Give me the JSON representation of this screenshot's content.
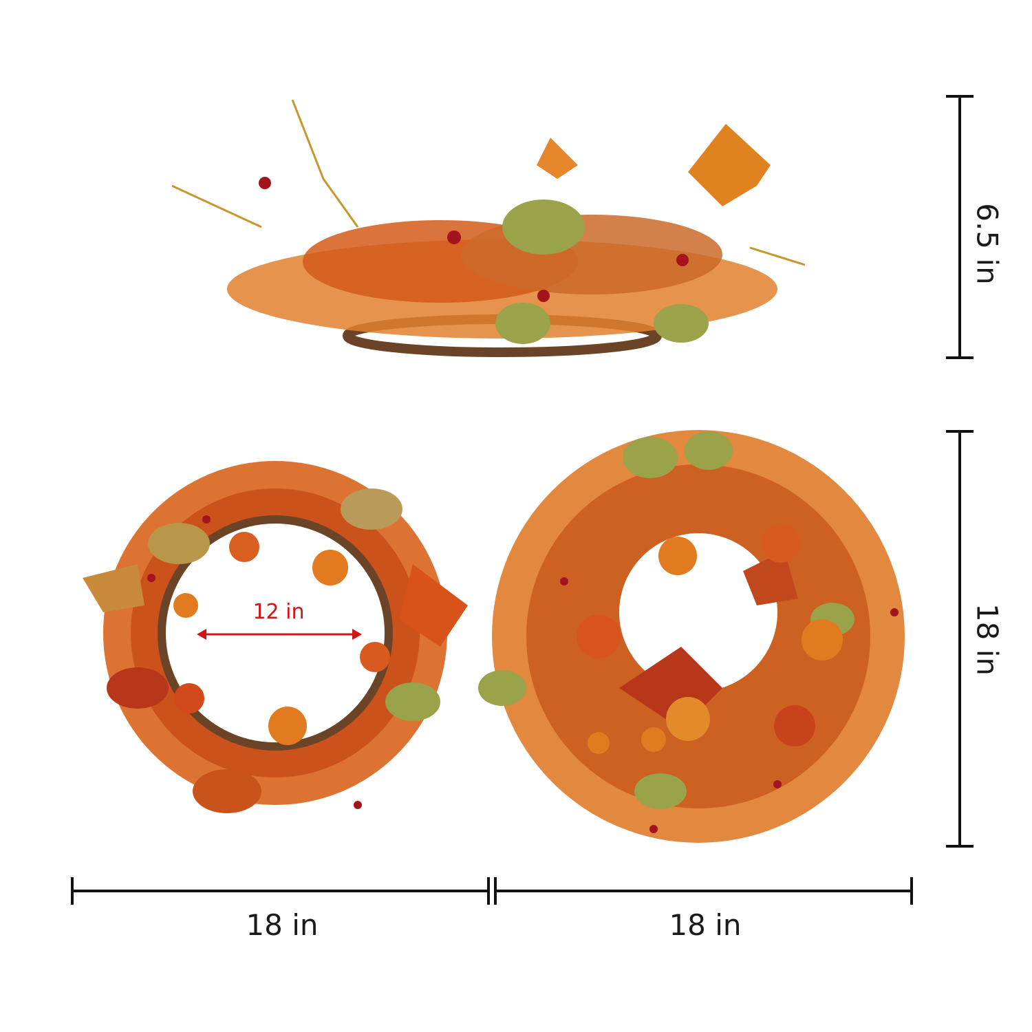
{
  "dimensions": {
    "side_height": "6.5 in",
    "front_height": "18 in",
    "back_width": "18 in",
    "front_width": "18 in",
    "inner_diameter": "12 in"
  },
  "colors": {
    "dimension_line": "#111111",
    "inner_arrow": "#d01616",
    "leaf_orange": "#d9641c",
    "leaf_red": "#b8361a",
    "leaf_green": "#9aa24a",
    "pumpkin": "#e27a1f",
    "berry": "#a3141c",
    "vine": "#6b4326"
  }
}
